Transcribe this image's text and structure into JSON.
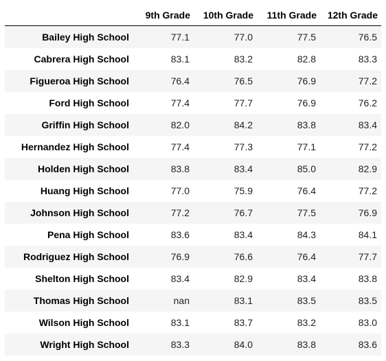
{
  "table": {
    "index_header": "",
    "columns": [
      "9th Grade",
      "10th Grade",
      "11th Grade",
      "12th Grade"
    ],
    "rows": [
      {
        "school": "Bailey High School",
        "values": [
          "77.1",
          "77.0",
          "77.5",
          "76.5"
        ]
      },
      {
        "school": "Cabrera High School",
        "values": [
          "83.1",
          "83.2",
          "82.8",
          "83.3"
        ]
      },
      {
        "school": "Figueroa High School",
        "values": [
          "76.4",
          "76.5",
          "76.9",
          "77.2"
        ]
      },
      {
        "school": "Ford High School",
        "values": [
          "77.4",
          "77.7",
          "76.9",
          "76.2"
        ]
      },
      {
        "school": "Griffin High School",
        "values": [
          "82.0",
          "84.2",
          "83.8",
          "83.4"
        ]
      },
      {
        "school": "Hernandez High School",
        "values": [
          "77.4",
          "77.3",
          "77.1",
          "77.2"
        ]
      },
      {
        "school": "Holden High School",
        "values": [
          "83.8",
          "83.4",
          "85.0",
          "82.9"
        ]
      },
      {
        "school": "Huang High School",
        "values": [
          "77.0",
          "75.9",
          "76.4",
          "77.2"
        ]
      },
      {
        "school": "Johnson High School",
        "values": [
          "77.2",
          "76.7",
          "77.5",
          "76.9"
        ]
      },
      {
        "school": "Pena High School",
        "values": [
          "83.6",
          "83.4",
          "84.3",
          "84.1"
        ]
      },
      {
        "school": "Rodriguez High School",
        "values": [
          "76.9",
          "76.6",
          "76.4",
          "77.7"
        ]
      },
      {
        "school": "Shelton High School",
        "values": [
          "83.4",
          "82.9",
          "83.4",
          "83.8"
        ]
      },
      {
        "school": "Thomas High School",
        "values": [
          "nan",
          "83.1",
          "83.5",
          "83.5"
        ]
      },
      {
        "school": "Wilson High School",
        "values": [
          "83.1",
          "83.7",
          "83.2",
          "83.0"
        ]
      },
      {
        "school": "Wright High School",
        "values": [
          "83.3",
          "84.0",
          "83.8",
          "83.6"
        ]
      }
    ]
  }
}
